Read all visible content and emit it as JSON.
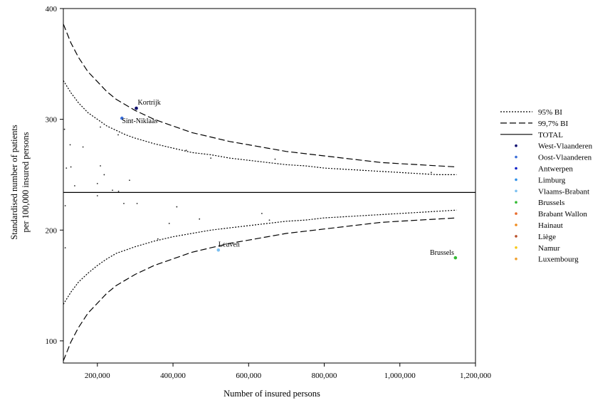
{
  "chart_data": {
    "type": "scatter",
    "xlabel": "Number of insured persons",
    "ylabel_lines": [
      "Standardised number of patients",
      "per 100,000 insured persons"
    ],
    "xlim": [
      110000,
      1200000
    ],
    "ylim": [
      80,
      400
    ],
    "x_ticks": [
      {
        "value": 200000,
        "label": "200,000"
      },
      {
        "value": 400000,
        "label": "400,000"
      },
      {
        "value": 600000,
        "label": "600,000"
      },
      {
        "value": 800000,
        "label": "800,000"
      },
      {
        "value": 1000000,
        "label": "1,000,000"
      },
      {
        "value": 1200000,
        "label": "1,200,000"
      }
    ],
    "y_ticks": [
      {
        "value": 100,
        "label": "100"
      },
      {
        "value": 200,
        "label": "200"
      },
      {
        "value": 300,
        "label": "300"
      },
      {
        "value": 400,
        "label": "400"
      }
    ],
    "total": 234,
    "grid": false,
    "legend_position": "right",
    "limits": [
      {
        "name": "95% BI",
        "style": "dotted",
        "color": "#000000",
        "x": [
          110000,
          130000,
          150000,
          175000,
          200000,
          225000,
          250000,
          275000,
          300000,
          350000,
          400000,
          450000,
          500000,
          550000,
          600000,
          650000,
          700000,
          750000,
          800000,
          850000,
          900000,
          950000,
          1000000,
          1050000,
          1100000,
          1150000
        ],
        "upper": [
          335,
          324,
          315,
          306,
          300,
          294,
          290,
          286,
          283,
          278,
          274,
          270,
          268,
          265,
          263,
          261,
          259,
          258,
          256,
          255,
          254,
          253,
          252,
          251,
          250,
          250
        ],
        "lower": [
          133,
          144,
          153,
          161,
          168,
          174,
          179,
          182,
          185,
          190,
          194,
          197,
          200,
          202,
          204,
          206,
          208,
          209,
          211,
          212,
          213,
          214,
          215,
          216,
          217,
          218
        ]
      },
      {
        "name": "99,7% BI",
        "style": "dashed",
        "color": "#000000",
        "x": [
          110000,
          130000,
          150000,
          175000,
          200000,
          225000,
          250000,
          275000,
          300000,
          350000,
          400000,
          450000,
          500000,
          550000,
          600000,
          650000,
          700000,
          750000,
          800000,
          850000,
          900000,
          950000,
          1000000,
          1050000,
          1100000,
          1150000
        ],
        "upper": [
          386,
          369,
          356,
          343,
          334,
          325,
          318,
          313,
          308,
          300,
          294,
          288,
          284,
          280,
          277,
          274,
          271,
          269,
          267,
          265,
          263,
          261,
          260,
          259,
          258,
          257
        ],
        "lower": [
          82,
          99,
          112,
          125,
          134,
          143,
          150,
          155,
          160,
          168,
          174,
          180,
          184,
          188,
          191,
          194,
          197,
          199,
          201,
          203,
          205,
          207,
          208,
          209,
          210,
          211
        ]
      },
      {
        "name": "TOTAL",
        "style": "solid",
        "color": "#000000"
      }
    ],
    "regions": [
      {
        "name": "West-Vlaanderen",
        "color": "#0a0a6e"
      },
      {
        "name": "Oost-Vlaanderen",
        "color": "#3a6ed8"
      },
      {
        "name": "Antwerpen",
        "color": "#1020c8"
      },
      {
        "name": "Limburg",
        "color": "#2e90e8"
      },
      {
        "name": "Vlaams-Brabant",
        "color": "#7cc0f0"
      },
      {
        "name": "Brussels",
        "color": "#33bb33"
      },
      {
        "name": "Brabant Wallon",
        "color": "#e86a2a"
      },
      {
        "name": "Hainaut",
        "color": "#f08a1a"
      },
      {
        "name": "Liège",
        "color": "#b8502a"
      },
      {
        "name": "Namur",
        "color": "#f8c818"
      },
      {
        "name": "Luxembourg",
        "color": "#f0a030"
      }
    ],
    "labelled_points": [
      {
        "label": "Kortrijk",
        "x": 303000,
        "y": 310,
        "region": "West-Vlaanderen",
        "anchor": "right"
      },
      {
        "label": "Sint-Niklaas",
        "x": 265000,
        "y": 301,
        "region": "Oost-Vlaanderen",
        "anchor": "below-right"
      },
      {
        "label": "Leuven",
        "x": 520000,
        "y": 182,
        "region": "Vlaams-Brabant",
        "anchor": "above-right"
      },
      {
        "label": "Brussels",
        "x": 1147000,
        "y": 175,
        "region": "Brussels",
        "anchor": "above-left"
      }
    ],
    "points": [
      {
        "x": 113000,
        "y": 291
      },
      {
        "x": 128000,
        "y": 277
      },
      {
        "x": 118000,
        "y": 256
      },
      {
        "x": 130000,
        "y": 257
      },
      {
        "x": 140000,
        "y": 240
      },
      {
        "x": 162000,
        "y": 275
      },
      {
        "x": 208000,
        "y": 293
      },
      {
        "x": 208000,
        "y": 258
      },
      {
        "x": 218000,
        "y": 250
      },
      {
        "x": 200000,
        "y": 242
      },
      {
        "x": 200000,
        "y": 231
      },
      {
        "x": 240000,
        "y": 236
      },
      {
        "x": 256000,
        "y": 235
      },
      {
        "x": 255000,
        "y": 286
      },
      {
        "x": 285000,
        "y": 245
      },
      {
        "x": 435000,
        "y": 272
      },
      {
        "x": 500000,
        "y": 265
      },
      {
        "x": 670000,
        "y": 264
      },
      {
        "x": 1083000,
        "y": 252
      },
      {
        "x": 115000,
        "y": 222
      },
      {
        "x": 115000,
        "y": 184
      },
      {
        "x": 270000,
        "y": 224
      },
      {
        "x": 305000,
        "y": 224
      },
      {
        "x": 410000,
        "y": 221
      },
      {
        "x": 360000,
        "y": 192
      },
      {
        "x": 390000,
        "y": 206
      },
      {
        "x": 470000,
        "y": 210
      },
      {
        "x": 635000,
        "y": 215
      },
      {
        "x": 655000,
        "y": 209
      }
    ]
  }
}
